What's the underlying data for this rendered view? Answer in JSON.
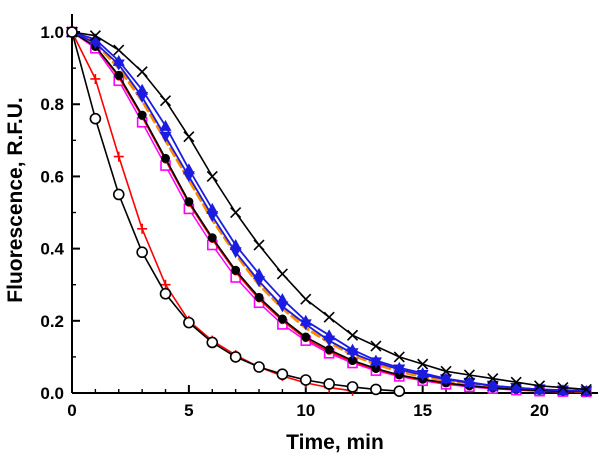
{
  "figure": {
    "x_axis_title": "Time, min",
    "y_axis_title": "Fluorescence, R.F.U."
  },
  "chart_data": {
    "type": "line",
    "title": "",
    "xlabel": "Time, min",
    "ylabel": "Fluorescence, R.F.U.",
    "xlim": [
      0,
      22.5
    ],
    "ylim": [
      0,
      1.05
    ],
    "x_ticks": [
      0,
      5,
      10,
      15,
      20
    ],
    "x_tick_labels": [
      "0",
      "5",
      "10",
      "15",
      "20"
    ],
    "y_ticks": [
      0.0,
      0.2,
      0.4,
      0.6,
      0.8,
      1.0
    ],
    "y_tick_labels": [
      "0.0",
      "0.2",
      "0.4",
      "0.6",
      "0.8",
      "1.0"
    ],
    "x_minor_step": 1,
    "y_minor_step": 0.1,
    "grid": false,
    "legend": "none",
    "background_color": "#ffffff",
    "axis_color": "#000000",
    "series": [
      {
        "name": "orange-dashed-slow-decay",
        "color": "#ff8c00",
        "marker": "none",
        "line_width": 3,
        "dash": "8 5",
        "x": [
          0,
          1,
          2,
          3,
          4,
          5,
          6,
          7,
          8,
          9,
          10,
          11,
          12,
          13,
          14,
          15,
          16,
          17,
          18,
          19,
          20,
          21,
          22
        ],
        "y": [
          1.0,
          0.97,
          0.9,
          0.81,
          0.7,
          0.59,
          0.48,
          0.385,
          0.3,
          0.235,
          0.18,
          0.14,
          0.105,
          0.08,
          0.06,
          0.045,
          0.034,
          0.025,
          0.018,
          0.012,
          0.008,
          0.006,
          0.004
        ]
      },
      {
        "name": "magenta-open-square-slow-decay",
        "color": "#ff00ff",
        "marker": "square-open",
        "line_width": 1.5,
        "dash": "",
        "x": [
          0,
          1,
          2,
          3,
          4,
          5,
          6,
          7,
          8,
          9,
          10,
          11,
          12,
          13,
          14,
          15,
          16,
          17,
          18,
          19,
          20,
          21,
          22
        ],
        "y": [
          1.0,
          0.955,
          0.865,
          0.75,
          0.63,
          0.51,
          0.41,
          0.32,
          0.25,
          0.19,
          0.145,
          0.11,
          0.083,
          0.062,
          0.046,
          0.034,
          0.024,
          0.017,
          0.012,
          0.008,
          0.005,
          0.004,
          0.003
        ]
      },
      {
        "name": "red-filled-circle-slow-decay",
        "color": "#ff0000",
        "marker": "circle-filled-small",
        "line_width": 1.5,
        "dash": "",
        "x": [
          0,
          1,
          2,
          3,
          4,
          5,
          6,
          7,
          8,
          9,
          10,
          11,
          12,
          13,
          14,
          15,
          16,
          17,
          18,
          19,
          20,
          21,
          22
        ],
        "y": [
          1.0,
          0.96,
          0.875,
          0.765,
          0.645,
          0.525,
          0.425,
          0.335,
          0.26,
          0.2,
          0.15,
          0.115,
          0.087,
          0.065,
          0.048,
          0.036,
          0.026,
          0.019,
          0.013,
          0.009,
          0.006,
          0.004,
          0.003
        ]
      },
      {
        "name": "black-filled-circle-slow-decay",
        "color": "#000000",
        "marker": "circle-filled",
        "line_width": 1.6,
        "dash": "",
        "x": [
          0,
          1,
          2,
          3,
          4,
          5,
          6,
          7,
          8,
          9,
          10,
          11,
          12,
          13,
          14,
          15,
          16,
          17,
          18,
          19,
          20,
          21,
          22
        ],
        "y": [
          1.0,
          0.96,
          0.88,
          0.77,
          0.65,
          0.53,
          0.43,
          0.34,
          0.265,
          0.205,
          0.155,
          0.12,
          0.09,
          0.068,
          0.05,
          0.038,
          0.028,
          0.02,
          0.014,
          0.01,
          0.007,
          0.005,
          0.004
        ]
      },
      {
        "name": "blue-triangle-down-slow-decay",
        "color": "#1c1ce0",
        "marker": "triangle-down",
        "line_width": 1.8,
        "dash": "",
        "x": [
          0,
          1,
          2,
          3,
          4,
          5,
          6,
          7,
          8,
          9,
          10,
          11,
          12,
          13,
          14,
          15,
          16,
          17,
          18,
          19,
          20,
          21,
          22
        ],
        "y": [
          1.0,
          0.97,
          0.91,
          0.82,
          0.71,
          0.6,
          0.49,
          0.39,
          0.31,
          0.24,
          0.19,
          0.145,
          0.11,
          0.085,
          0.065,
          0.05,
          0.038,
          0.028,
          0.02,
          0.014,
          0.01,
          0.007,
          0.005
        ]
      },
      {
        "name": "blue-triangle-up-slow-decay",
        "color": "#1c1ce0",
        "marker": "triangle-up",
        "line_width": 1.8,
        "dash": "",
        "x": [
          0,
          1,
          2,
          3,
          4,
          5,
          6,
          7,
          8,
          9,
          10,
          11,
          12,
          13,
          14,
          15,
          16,
          17,
          18,
          19,
          20,
          21,
          22
        ],
        "y": [
          1.0,
          0.98,
          0.92,
          0.84,
          0.74,
          0.62,
          0.51,
          0.41,
          0.33,
          0.26,
          0.2,
          0.16,
          0.12,
          0.09,
          0.07,
          0.055,
          0.04,
          0.03,
          0.02,
          0.015,
          0.01,
          0.008,
          0.006
        ]
      },
      {
        "name": "black-x-mark-slowest-decay",
        "color": "#000000",
        "marker": "x",
        "line_width": 1.6,
        "dash": "",
        "x": [
          0,
          1,
          2,
          3,
          4,
          5,
          6,
          7,
          8,
          9,
          10,
          11,
          12,
          13,
          14,
          15,
          16,
          17,
          18,
          19,
          20,
          21,
          22
        ],
        "y": [
          1.0,
          0.99,
          0.95,
          0.89,
          0.81,
          0.71,
          0.6,
          0.5,
          0.41,
          0.33,
          0.26,
          0.21,
          0.16,
          0.13,
          0.1,
          0.08,
          0.06,
          0.05,
          0.04,
          0.03,
          0.02,
          0.015,
          0.01
        ]
      },
      {
        "name": "red-plus-fast-decay",
        "color": "#ff0000",
        "marker": "plus",
        "line_width": 1.6,
        "dash": "",
        "x": [
          0,
          1,
          2,
          3,
          4,
          5,
          6,
          7,
          8,
          9,
          10,
          11,
          12
        ],
        "y": [
          1.0,
          0.87,
          0.655,
          0.455,
          0.3,
          0.2,
          0.145,
          0.105,
          0.072,
          0.047,
          0.028,
          0.015,
          0.006
        ]
      },
      {
        "name": "black-open-circle-fast-decay",
        "color": "#000000",
        "marker": "circle-open",
        "line_width": 1.6,
        "dash": "",
        "x": [
          0,
          1,
          2,
          3,
          4,
          5,
          6,
          7,
          8,
          9,
          10,
          11,
          12,
          13,
          14
        ],
        "y": [
          1.0,
          0.76,
          0.55,
          0.39,
          0.275,
          0.195,
          0.14,
          0.1,
          0.072,
          0.052,
          0.036,
          0.025,
          0.017,
          0.01,
          0.005
        ]
      }
    ]
  }
}
